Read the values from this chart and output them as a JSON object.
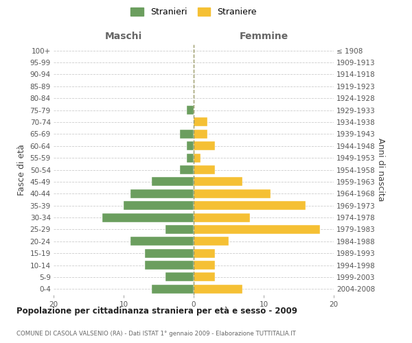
{
  "age_groups": [
    "0-4",
    "5-9",
    "10-14",
    "15-19",
    "20-24",
    "25-29",
    "30-34",
    "35-39",
    "40-44",
    "45-49",
    "50-54",
    "55-59",
    "60-64",
    "65-69",
    "70-74",
    "75-79",
    "80-84",
    "85-89",
    "90-94",
    "95-99",
    "100+"
  ],
  "birth_years": [
    "2004-2008",
    "1999-2003",
    "1994-1998",
    "1989-1993",
    "1984-1988",
    "1979-1983",
    "1974-1978",
    "1969-1973",
    "1964-1968",
    "1959-1963",
    "1954-1958",
    "1949-1953",
    "1944-1948",
    "1939-1943",
    "1934-1938",
    "1929-1933",
    "1924-1928",
    "1919-1923",
    "1914-1918",
    "1909-1913",
    "≤ 1908"
  ],
  "maschi": [
    6,
    4,
    7,
    7,
    9,
    4,
    13,
    10,
    9,
    6,
    2,
    1,
    1,
    2,
    0,
    1,
    0,
    0,
    0,
    0,
    0
  ],
  "femmine": [
    7,
    3,
    3,
    3,
    5,
    18,
    8,
    16,
    11,
    7,
    3,
    1,
    3,
    2,
    2,
    0,
    0,
    0,
    0,
    0,
    0
  ],
  "color_maschi": "#6b9e5e",
  "color_femmine": "#f5c034",
  "xlim": 20,
  "title": "Popolazione per cittadinanza straniera per età e sesso - 2009",
  "subtitle": "COMUNE DI CASOLA VALSENIO (RA) - Dati ISTAT 1° gennaio 2009 - Elaborazione TUTTITALIA.IT",
  "ylabel_left": "Fasce di età",
  "ylabel_right": "Anni di nascita",
  "label_maschi": "Stranieri",
  "label_femmine": "Straniere",
  "header_left": "Maschi",
  "header_right": "Femmine",
  "bg_color": "#ffffff",
  "grid_color": "#cccccc",
  "bar_height": 0.75,
  "tick_fontsize": 7.5,
  "header_fontsize": 10,
  "legend_fontsize": 9,
  "title_fontsize": 8.5,
  "subtitle_fontsize": 6.2
}
